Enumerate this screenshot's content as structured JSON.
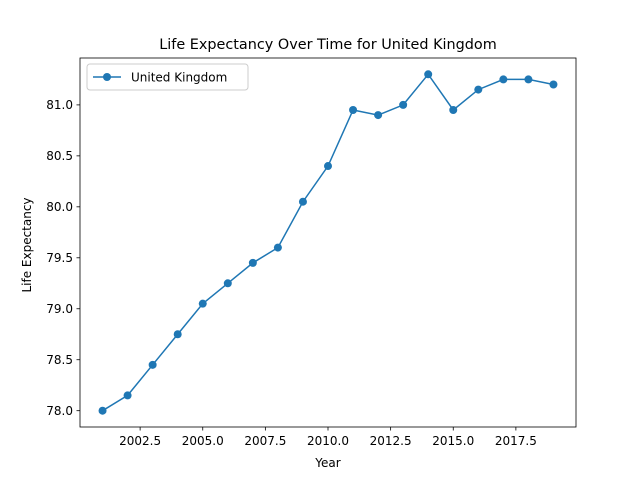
{
  "chart_data": {
    "type": "line",
    "title": "Life Expectancy Over Time for United Kingdom",
    "xlabel": "Year",
    "ylabel": "Life Expectancy",
    "xlim": [
      2000.1,
      2019.9
    ],
    "ylim": [
      77.84,
      81.46
    ],
    "xticks": [
      2002.5,
      2005.0,
      2007.5,
      2010.0,
      2012.5,
      2015.0,
      2017.5
    ],
    "xtick_labels": [
      "2002.5",
      "2005.0",
      "2007.5",
      "2010.0",
      "2012.5",
      "2015.0",
      "2017.5"
    ],
    "yticks": [
      78.0,
      78.5,
      79.0,
      79.5,
      80.0,
      80.5,
      81.0
    ],
    "ytick_labels": [
      "78.0",
      "78.5",
      "79.0",
      "79.5",
      "80.0",
      "80.5",
      "81.0"
    ],
    "grid": false,
    "legend_position": "top-left",
    "series": [
      {
        "name": "United Kingdom",
        "color": "#1f77b4",
        "marker": "circle",
        "x": [
          2001,
          2002,
          2003,
          2004,
          2005,
          2006,
          2007,
          2008,
          2009,
          2010,
          2011,
          2012,
          2013,
          2014,
          2015,
          2016,
          2017,
          2018,
          2019
        ],
        "y": [
          78.0,
          78.15,
          78.45,
          78.75,
          79.05,
          79.25,
          79.45,
          79.6,
          80.05,
          80.4,
          80.95,
          80.9,
          81.0,
          81.3,
          80.95,
          81.15,
          81.25,
          81.25,
          81.2
        ]
      }
    ]
  }
}
